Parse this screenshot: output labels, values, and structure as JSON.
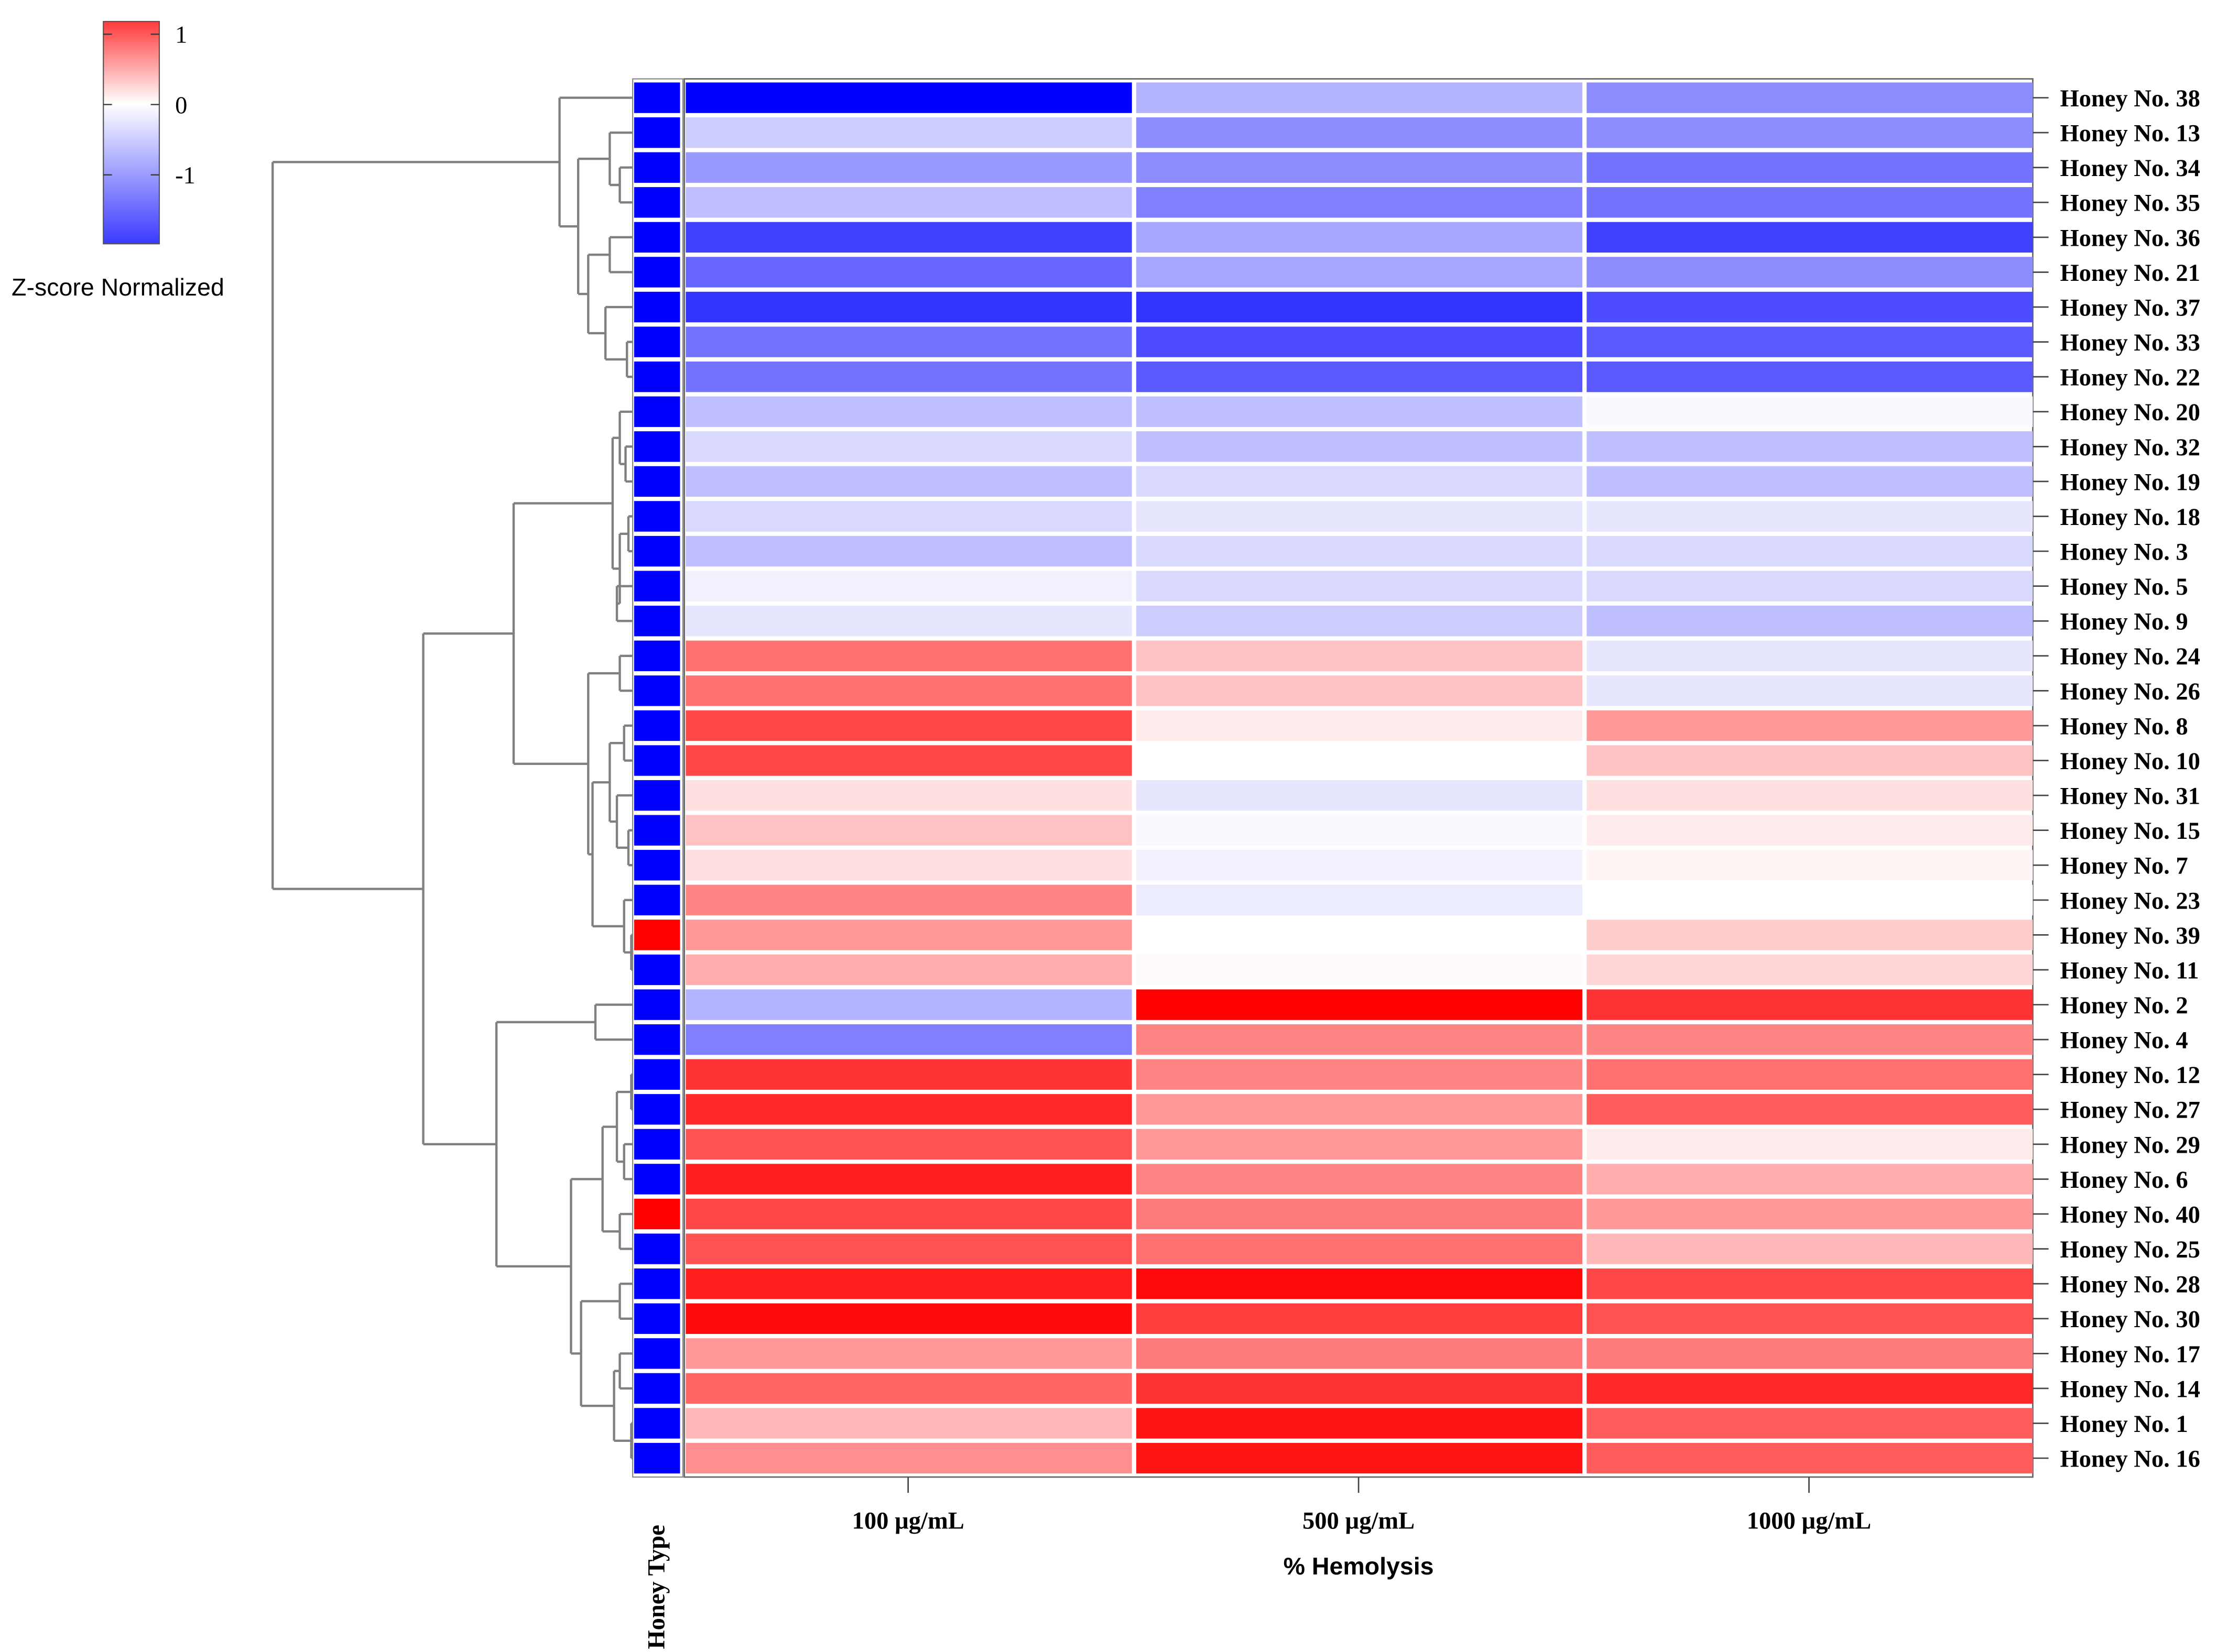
{
  "chart_data": {
    "type": "heatmap",
    "title": "",
    "xlabel": "% Hemolysis",
    "columns": [
      "100 µg/mL",
      "500 µg/mL",
      "1000 µg/mL"
    ],
    "annotation_label": "Honey Type",
    "annotation_colors": {
      "blue_type": "#0000ff",
      "red_type": "#ff0000"
    },
    "legend": {
      "title": "Z-score Normalized",
      "ticks": [
        "1",
        "0",
        "-1"
      ],
      "tick_values": [
        1,
        0,
        -1
      ],
      "range": [
        -1.98,
        1.18
      ],
      "low_color": "#3a3aff",
      "mid_color": "#ffffff",
      "high_color": "#ff3a3a"
    },
    "rows": [
      {
        "label": "Honey No. 38",
        "type": "blue",
        "values": [
          -2.0,
          -0.6,
          -0.9
        ]
      },
      {
        "label": "Honey No. 13",
        "type": "blue",
        "values": [
          -0.4,
          -0.9,
          -0.9
        ]
      },
      {
        "label": "Honey No. 34",
        "type": "blue",
        "values": [
          -0.8,
          -0.9,
          -1.1
        ]
      },
      {
        "label": "Honey No. 35",
        "type": "blue",
        "values": [
          -0.5,
          -1.0,
          -1.1
        ]
      },
      {
        "label": "Honey No. 36",
        "type": "blue",
        "values": [
          -1.5,
          -0.7,
          -1.5
        ]
      },
      {
        "label": "Honey No. 21",
        "type": "blue",
        "values": [
          -1.2,
          -0.7,
          -0.9
        ]
      },
      {
        "label": "Honey No. 37",
        "type": "blue",
        "values": [
          -1.6,
          -1.6,
          -1.4
        ]
      },
      {
        "label": "Honey No. 33",
        "type": "blue",
        "values": [
          -1.1,
          -1.4,
          -1.3
        ]
      },
      {
        "label": "Honey No. 22",
        "type": "blue",
        "values": [
          -1.1,
          -1.3,
          -1.3
        ]
      },
      {
        "label": "Honey No. 20",
        "type": "blue",
        "values": [
          -0.5,
          -0.5,
          -0.05
        ]
      },
      {
        "label": "Honey No. 32",
        "type": "blue",
        "values": [
          -0.3,
          -0.5,
          -0.5
        ]
      },
      {
        "label": "Honey No. 19",
        "type": "blue",
        "values": [
          -0.5,
          -0.3,
          -0.5
        ]
      },
      {
        "label": "Honey No. 18",
        "type": "blue",
        "values": [
          -0.3,
          -0.2,
          -0.2
        ]
      },
      {
        "label": "Honey No. 3",
        "type": "blue",
        "values": [
          -0.5,
          -0.3,
          -0.3
        ]
      },
      {
        "label": "Honey No. 5",
        "type": "blue",
        "values": [
          -0.1,
          -0.3,
          -0.3
        ]
      },
      {
        "label": "Honey No. 9",
        "type": "blue",
        "values": [
          -0.2,
          -0.4,
          -0.5
        ]
      },
      {
        "label": "Honey No. 24",
        "type": "blue",
        "values": [
          0.7,
          0.3,
          -0.2
        ]
      },
      {
        "label": "Honey No. 26",
        "type": "blue",
        "values": [
          0.7,
          0.3,
          -0.2
        ]
      },
      {
        "label": "Honey No. 8",
        "type": "blue",
        "values": [
          0.9,
          0.1,
          0.5
        ]
      },
      {
        "label": "Honey No. 10",
        "type": "blue",
        "values": [
          0.9,
          0.0,
          0.3
        ]
      },
      {
        "label": "Honey No. 31",
        "type": "blue",
        "values": [
          0.15,
          -0.2,
          0.15
        ]
      },
      {
        "label": "Honey No. 15",
        "type": "blue",
        "values": [
          0.3,
          -0.05,
          0.1
        ]
      },
      {
        "label": "Honey No. 7",
        "type": "blue",
        "values": [
          0.15,
          -0.1,
          0.05
        ]
      },
      {
        "label": "Honey No. 23",
        "type": "blue",
        "values": [
          0.6,
          -0.15,
          0.0
        ]
      },
      {
        "label": "Honey No. 39",
        "type": "red",
        "values": [
          0.5,
          0.0,
          0.25
        ]
      },
      {
        "label": "Honey No. 11",
        "type": "blue",
        "values": [
          0.4,
          0.02,
          0.2
        ]
      },
      {
        "label": "Honey No. 2",
        "type": "blue",
        "values": [
          -0.6,
          1.25,
          1.0
        ]
      },
      {
        "label": "Honey No. 4",
        "type": "blue",
        "values": [
          -1.0,
          0.6,
          0.6
        ]
      },
      {
        "label": "Honey No. 12",
        "type": "blue",
        "values": [
          1.0,
          0.6,
          0.7
        ]
      },
      {
        "label": "Honey No. 27",
        "type": "blue",
        "values": [
          1.05,
          0.5,
          0.8
        ]
      },
      {
        "label": "Honey No. 29",
        "type": "blue",
        "values": [
          0.85,
          0.5,
          0.1
        ]
      },
      {
        "label": "Honey No. 6",
        "type": "blue",
        "values": [
          1.1,
          0.6,
          0.4
        ]
      },
      {
        "label": "Honey No. 40",
        "type": "red",
        "values": [
          0.9,
          0.65,
          0.5
        ]
      },
      {
        "label": "Honey No. 25",
        "type": "blue",
        "values": [
          0.85,
          0.7,
          0.35
        ]
      },
      {
        "label": "Honey No. 28",
        "type": "blue",
        "values": [
          1.1,
          1.2,
          0.9
        ]
      },
      {
        "label": "Honey No. 30",
        "type": "blue",
        "values": [
          1.2,
          0.95,
          0.85
        ]
      },
      {
        "label": "Honey No. 17",
        "type": "blue",
        "values": [
          0.5,
          0.65,
          0.65
        ]
      },
      {
        "label": "Honey No. 14",
        "type": "blue",
        "values": [
          0.75,
          1.0,
          1.05
        ]
      },
      {
        "label": "Honey No. 1",
        "type": "blue",
        "values": [
          0.35,
          1.15,
          0.8
        ]
      },
      {
        "label": "Honey No. 16",
        "type": "blue",
        "values": [
          0.55,
          1.15,
          0.8
        ]
      }
    ]
  }
}
